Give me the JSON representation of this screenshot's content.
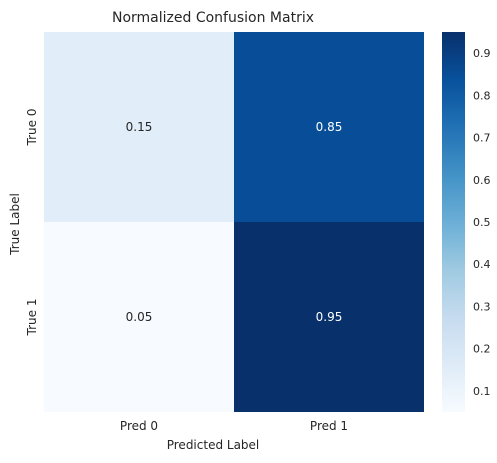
{
  "chart_data": {
    "type": "heatmap",
    "title": "Normalized Confusion Matrix",
    "xlabel": "Predicted Label",
    "ylabel": "True Label",
    "x_categories": [
      "Pred 0",
      "Pred 1"
    ],
    "y_categories": [
      "True 0",
      "True 1"
    ],
    "values": [
      [
        0.15,
        0.85
      ],
      [
        0.05,
        0.95
      ]
    ],
    "cell_labels": [
      [
        "0.15",
        "0.85"
      ],
      [
        "0.05",
        "0.95"
      ]
    ],
    "colormap": "Blues",
    "color_range": [
      0.05,
      0.95
    ],
    "colorbar": {
      "ticks": [
        0.1,
        0.2,
        0.3,
        0.4,
        0.5,
        0.6,
        0.7,
        0.8,
        0.9
      ],
      "tick_labels": [
        "0.1",
        "0.2",
        "0.3",
        "0.4",
        "0.5",
        "0.6",
        "0.7",
        "0.8",
        "0.9"
      ]
    },
    "grid": false
  }
}
